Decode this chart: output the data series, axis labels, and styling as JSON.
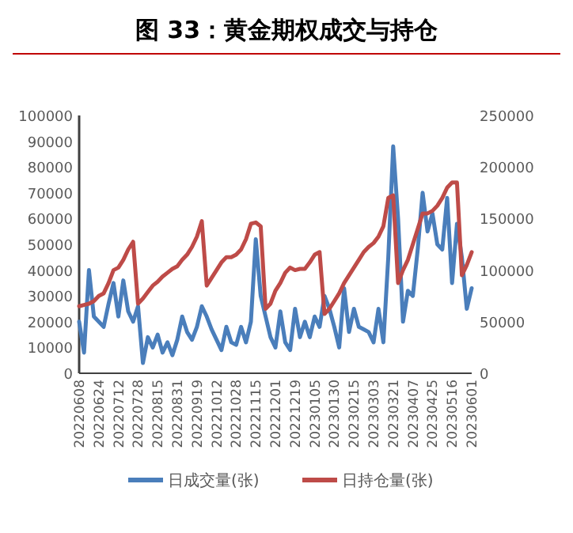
{
  "chart_data": {
    "type": "line",
    "title": "图 33：黄金期权成交与持仓",
    "categories": [
      "20220608",
      null,
      null,
      null,
      "20220624",
      null,
      null,
      null,
      "20220712",
      null,
      null,
      null,
      "20220728",
      null,
      null,
      null,
      "20220815",
      null,
      null,
      null,
      "20220831",
      null,
      null,
      null,
      "20220919",
      null,
      null,
      null,
      "20221012",
      null,
      null,
      null,
      "20221028",
      null,
      null,
      null,
      "20221115",
      null,
      null,
      null,
      "20221201",
      null,
      null,
      null,
      "20221219",
      null,
      null,
      null,
      "20230105",
      null,
      null,
      null,
      "20230130",
      null,
      null,
      null,
      "20230215",
      null,
      null,
      null,
      "20230303",
      null,
      null,
      null,
      "20230321",
      null,
      null,
      null,
      "20230407",
      null,
      null,
      null,
      "20230425",
      null,
      null,
      null,
      "20230516",
      null,
      null,
      null,
      "20230601"
    ],
    "series": [
      {
        "name": "日成交量(张)",
        "color": "#4a7ebb",
        "values": [
          20000,
          8000,
          40000,
          22000,
          20000,
          18000,
          27000,
          35000,
          22000,
          36000,
          24000,
          20000,
          26000,
          4000,
          14000,
          10000,
          15000,
          8000,
          12000,
          7000,
          13000,
          22000,
          16000,
          13000,
          18000,
          26000,
          22000,
          17000,
          13000,
          9000,
          18000,
          12000,
          11000,
          18000,
          12000,
          20000,
          52000,
          30000,
          22000,
          14000,
          10000,
          24000,
          12000,
          9000,
          25000,
          14000,
          20000,
          14000,
          22000,
          18000,
          30000,
          25000,
          18000,
          10000,
          33000,
          16000,
          25000,
          18000,
          17000,
          16000,
          12000,
          25000,
          12000,
          45000,
          88000,
          60000,
          20000,
          32000,
          30000,
          48000,
          70000,
          55000,
          62000,
          50000,
          48000,
          68000,
          35000,
          58000,
          45000,
          25000,
          33000
        ]
      },
      {
        "name": "日持仓量(张)",
        "color": "#be4b48",
        "axis": "y2",
        "values": [
          65000,
          66250,
          67500,
          70000,
          75000,
          77500,
          87500,
          100000,
          102500,
          110000,
          120000,
          127500,
          67500,
          72500,
          78750,
          85000,
          88750,
          93750,
          97500,
          101250,
          103750,
          110000,
          115000,
          122500,
          132500,
          147500,
          85000,
          92500,
          100000,
          107500,
          112500,
          112500,
          115000,
          120000,
          130000,
          145000,
          146250,
          142500,
          62500,
          67500,
          80000,
          87500,
          97500,
          102500,
          100000,
          101250,
          101250,
          107500,
          115000,
          117500,
          57500,
          62500,
          70000,
          77500,
          87500,
          95000,
          102500,
          110000,
          117500,
          122500,
          126250,
          132500,
          142500,
          170000,
          172500,
          87500,
          100000,
          110000,
          125000,
          140000,
          155000,
          155000,
          157500,
          162500,
          170000,
          180000,
          185000,
          185000,
          95000,
          105000,
          117500
        ]
      }
    ],
    "ylim": [
      0,
      100000
    ],
    "yticks": [
      0,
      10000,
      20000,
      30000,
      40000,
      50000,
      60000,
      70000,
      80000,
      90000,
      100000
    ],
    "y2lim": [
      0,
      250000
    ],
    "y2ticks": [
      0,
      50000,
      100000,
      150000,
      200000,
      250000
    ],
    "legend": "bottom"
  }
}
